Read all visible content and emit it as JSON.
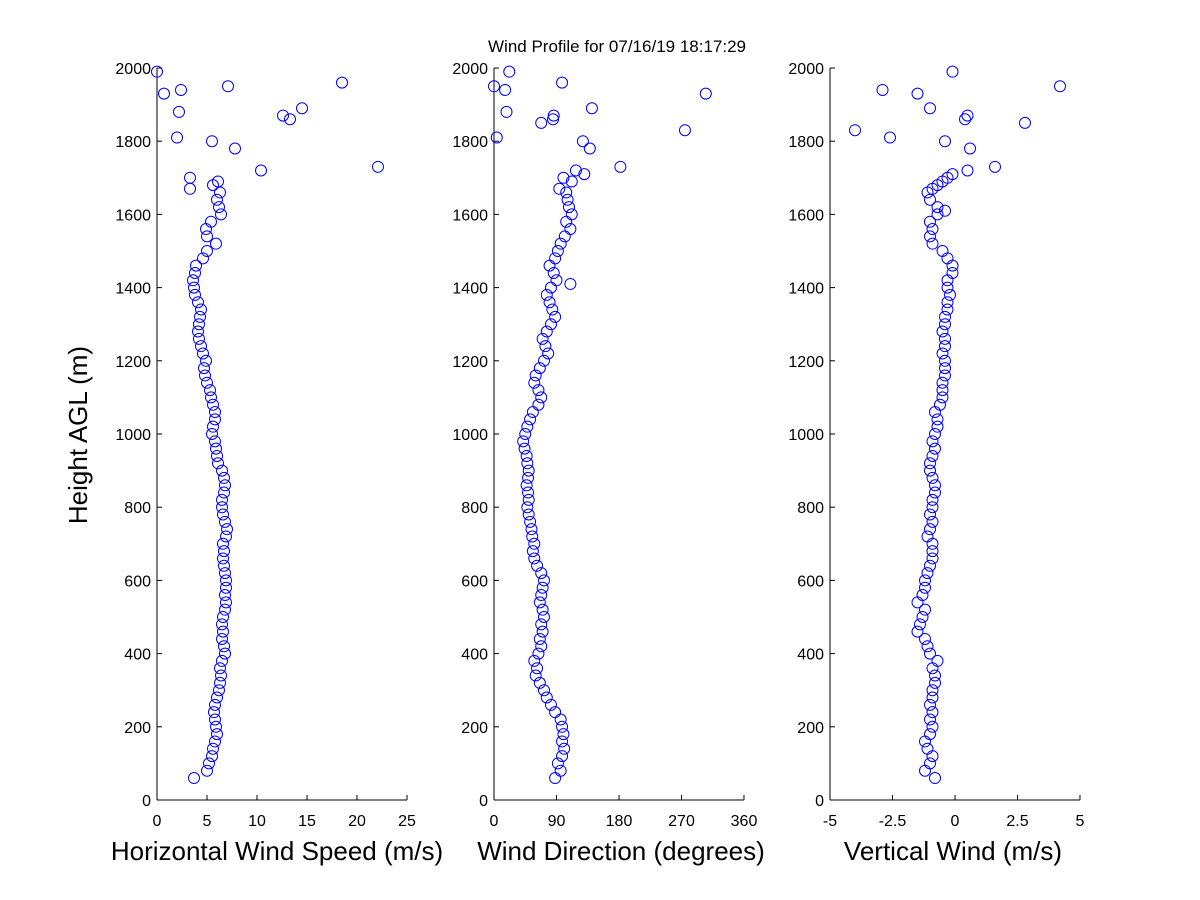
{
  "chart_data": {
    "figure_title": "Wind Profile for  07/16/19 18:17:29",
    "ylabel": "Height AGL (m)",
    "ylim": [
      0,
      2000
    ],
    "yticks": [
      "0",
      "200",
      "400",
      "600",
      "800",
      "1000",
      "1200",
      "1400",
      "1600",
      "1800",
      "2000"
    ],
    "panels": [
      {
        "type": "scatter",
        "xlabel": "Horizontal Wind Speed (m/s)",
        "xlim": [
          0,
          25
        ],
        "xticks": [
          0,
          5,
          10,
          15,
          20,
          25
        ],
        "xtick_labels": [
          "0",
          "5",
          "10",
          "15",
          "20",
          "25"
        ],
        "profile": [
          [
            60,
            3.7
          ],
          [
            80,
            5.0
          ],
          [
            100,
            5.2
          ],
          [
            120,
            5.5
          ],
          [
            140,
            5.6
          ],
          [
            160,
            5.8
          ],
          [
            180,
            6.0
          ],
          [
            200,
            5.9
          ],
          [
            220,
            5.8
          ],
          [
            240,
            5.7
          ],
          [
            260,
            5.8
          ],
          [
            280,
            6.0
          ],
          [
            300,
            6.2
          ],
          [
            320,
            6.3
          ],
          [
            340,
            6.4
          ],
          [
            360,
            6.3
          ],
          [
            380,
            6.5
          ],
          [
            400,
            6.8
          ],
          [
            420,
            6.7
          ],
          [
            440,
            6.5
          ],
          [
            460,
            6.6
          ],
          [
            480,
            6.5
          ],
          [
            500,
            6.6
          ],
          [
            520,
            6.8
          ],
          [
            540,
            6.9
          ],
          [
            560,
            6.8
          ],
          [
            580,
            6.9
          ],
          [
            600,
            6.9
          ],
          [
            620,
            6.8
          ],
          [
            640,
            6.7
          ],
          [
            660,
            6.6
          ],
          [
            680,
            6.7
          ],
          [
            700,
            6.6
          ],
          [
            720,
            6.9
          ],
          [
            740,
            7.0
          ],
          [
            760,
            6.8
          ],
          [
            780,
            6.6
          ],
          [
            800,
            6.5
          ],
          [
            820,
            6.5
          ],
          [
            840,
            6.7
          ],
          [
            860,
            6.8
          ],
          [
            880,
            6.7
          ],
          [
            900,
            6.5
          ],
          [
            920,
            6.1
          ],
          [
            940,
            6.0
          ],
          [
            960,
            5.9
          ],
          [
            980,
            5.8
          ],
          [
            1000,
            5.5
          ],
          [
            1020,
            5.6
          ],
          [
            1040,
            5.8
          ],
          [
            1060,
            5.8
          ],
          [
            1080,
            5.6
          ],
          [
            1100,
            5.4
          ],
          [
            1120,
            5.3
          ],
          [
            1140,
            5.0
          ],
          [
            1160,
            4.8
          ],
          [
            1180,
            4.7
          ],
          [
            1200,
            4.9
          ],
          [
            1220,
            4.6
          ],
          [
            1240,
            4.4
          ],
          [
            1260,
            4.2
          ],
          [
            1280,
            4.1
          ],
          [
            1300,
            4.2
          ],
          [
            1320,
            4.3
          ],
          [
            1340,
            4.4
          ],
          [
            1360,
            4.1
          ],
          [
            1380,
            3.8
          ],
          [
            1400,
            3.7
          ],
          [
            1420,
            3.6
          ],
          [
            1440,
            3.8
          ],
          [
            1460,
            3.9
          ],
          [
            1480,
            4.6
          ],
          [
            1500,
            5.0
          ],
          [
            1520,
            5.9
          ],
          [
            1540,
            5.0
          ],
          [
            1560,
            4.9
          ],
          [
            1580,
            5.4
          ],
          [
            1600,
            6.4
          ],
          [
            1620,
            6.2
          ],
          [
            1640,
            6.0
          ],
          [
            1660,
            6.3
          ],
          [
            1680,
            5.6
          ],
          [
            1690,
            6.1
          ]
        ],
        "outliers": [
          [
            1700,
            3.3
          ],
          [
            1670,
            3.3
          ],
          [
            1720,
            10.4
          ],
          [
            1730,
            22.1
          ],
          [
            1780,
            7.8
          ],
          [
            1800,
            5.5
          ],
          [
            1810,
            2.0
          ],
          [
            1860,
            13.3
          ],
          [
            1870,
            12.6
          ],
          [
            1880,
            2.2
          ],
          [
            1890,
            14.5
          ],
          [
            1930,
            0.7
          ],
          [
            1940,
            2.4
          ],
          [
            1950,
            7.1
          ],
          [
            1960,
            18.5
          ],
          [
            1990,
            0.0
          ]
        ]
      },
      {
        "type": "scatter",
        "xlabel": "Wind Direction (degrees)",
        "xlim": [
          0,
          360
        ],
        "xticks": [
          0,
          90,
          180,
          270,
          360
        ],
        "xtick_labels": [
          "0",
          "90",
          "180",
          "270",
          "360"
        ],
        "profile": [
          [
            60,
            88
          ],
          [
            80,
            96
          ],
          [
            100,
            92
          ],
          [
            120,
            98
          ],
          [
            140,
            101
          ],
          [
            160,
            98
          ],
          [
            180,
            100
          ],
          [
            200,
            98
          ],
          [
            220,
            96
          ],
          [
            240,
            88
          ],
          [
            260,
            82
          ],
          [
            280,
            76
          ],
          [
            300,
            72
          ],
          [
            320,
            66
          ],
          [
            340,
            60
          ],
          [
            360,
            62
          ],
          [
            380,
            58
          ],
          [
            400,
            64
          ],
          [
            420,
            68
          ],
          [
            440,
            66
          ],
          [
            460,
            70
          ],
          [
            480,
            68
          ],
          [
            500,
            72
          ],
          [
            520,
            70
          ],
          [
            540,
            66
          ],
          [
            560,
            68
          ],
          [
            580,
            70
          ],
          [
            600,
            72
          ],
          [
            620,
            68
          ],
          [
            640,
            62
          ],
          [
            660,
            58
          ],
          [
            680,
            56
          ],
          [
            700,
            58
          ],
          [
            720,
            55
          ],
          [
            740,
            54
          ],
          [
            760,
            52
          ],
          [
            780,
            50
          ],
          [
            800,
            48
          ],
          [
            820,
            50
          ],
          [
            840,
            49
          ],
          [
            860,
            47
          ],
          [
            880,
            49
          ],
          [
            900,
            50
          ],
          [
            920,
            48
          ],
          [
            940,
            47
          ],
          [
            960,
            44
          ],
          [
            980,
            42
          ],
          [
            1000,
            45
          ],
          [
            1020,
            48
          ],
          [
            1040,
            52
          ],
          [
            1060,
            56
          ],
          [
            1080,
            64
          ],
          [
            1100,
            68
          ],
          [
            1120,
            64
          ],
          [
            1140,
            58
          ],
          [
            1160,
            60
          ],
          [
            1180,
            66
          ],
          [
            1200,
            72
          ],
          [
            1220,
            78
          ],
          [
            1240,
            74
          ],
          [
            1260,
            70
          ],
          [
            1280,
            76
          ],
          [
            1300,
            82
          ],
          [
            1320,
            88
          ],
          [
            1340,
            84
          ],
          [
            1360,
            80
          ],
          [
            1380,
            76
          ],
          [
            1400,
            82
          ],
          [
            1420,
            90
          ],
          [
            1440,
            86
          ],
          [
            1460,
            80
          ],
          [
            1480,
            88
          ],
          [
            1500,
            92
          ],
          [
            1520,
            96
          ],
          [
            1540,
            102
          ],
          [
            1560,
            110
          ],
          [
            1580,
            104
          ],
          [
            1600,
            112
          ],
          [
            1620,
            108
          ],
          [
            1640,
            106
          ],
          [
            1660,
            104
          ],
          [
            1670,
            94
          ],
          [
            1690,
            112
          ],
          [
            1700,
            100
          ],
          [
            1710,
            130
          ]
        ],
        "outliers": [
          [
            1410,
            110
          ],
          [
            1720,
            118
          ],
          [
            1730,
            182
          ],
          [
            1780,
            138
          ],
          [
            1800,
            128
          ],
          [
            1810,
            4
          ],
          [
            1830,
            275
          ],
          [
            1850,
            68
          ],
          [
            1860,
            85
          ],
          [
            1870,
            86
          ],
          [
            1880,
            18
          ],
          [
            1890,
            141
          ],
          [
            1930,
            305
          ],
          [
            1940,
            16
          ],
          [
            1950,
            0
          ],
          [
            1960,
            98
          ],
          [
            1990,
            22
          ]
        ]
      },
      {
        "type": "scatter",
        "xlabel": "Vertical Wind (m/s)",
        "xlim": [
          -5,
          5
        ],
        "xticks": [
          -5,
          -2.5,
          0,
          2.5,
          5
        ],
        "xtick_labels": [
          "-5",
          "-2.5",
          "0",
          "2.5",
          "5"
        ],
        "profile": [
          [
            60,
            -0.8
          ],
          [
            80,
            -1.2
          ],
          [
            100,
            -1.0
          ],
          [
            120,
            -0.9
          ],
          [
            140,
            -1.1
          ],
          [
            160,
            -1.2
          ],
          [
            180,
            -1.0
          ],
          [
            200,
            -0.9
          ],
          [
            220,
            -1.0
          ],
          [
            240,
            -0.9
          ],
          [
            260,
            -1.0
          ],
          [
            280,
            -0.9
          ],
          [
            300,
            -0.9
          ],
          [
            320,
            -0.8
          ],
          [
            340,
            -0.8
          ],
          [
            360,
            -0.9
          ],
          [
            380,
            -0.7
          ],
          [
            400,
            -1.0
          ],
          [
            420,
            -1.1
          ],
          [
            440,
            -1.2
          ],
          [
            460,
            -1.5
          ],
          [
            480,
            -1.4
          ],
          [
            500,
            -1.3
          ],
          [
            520,
            -1.2
          ],
          [
            540,
            -1.5
          ],
          [
            560,
            -1.3
          ],
          [
            580,
            -1.2
          ],
          [
            600,
            -1.2
          ],
          [
            620,
            -1.1
          ],
          [
            640,
            -1.0
          ],
          [
            660,
            -0.9
          ],
          [
            680,
            -0.9
          ],
          [
            700,
            -0.9
          ],
          [
            720,
            -1.1
          ],
          [
            740,
            -1.0
          ],
          [
            760,
            -0.9
          ],
          [
            780,
            -1.0
          ],
          [
            800,
            -0.9
          ],
          [
            820,
            -0.9
          ],
          [
            840,
            -0.8
          ],
          [
            860,
            -0.8
          ],
          [
            880,
            -0.9
          ],
          [
            900,
            -1.0
          ],
          [
            920,
            -1.0
          ],
          [
            940,
            -0.9
          ],
          [
            960,
            -0.8
          ],
          [
            980,
            -0.9
          ],
          [
            1000,
            -0.8
          ],
          [
            1020,
            -0.7
          ],
          [
            1040,
            -0.7
          ],
          [
            1060,
            -0.8
          ],
          [
            1080,
            -0.6
          ],
          [
            1100,
            -0.5
          ],
          [
            1120,
            -0.5
          ],
          [
            1140,
            -0.5
          ],
          [
            1160,
            -0.4
          ],
          [
            1180,
            -0.4
          ],
          [
            1200,
            -0.4
          ],
          [
            1220,
            -0.5
          ],
          [
            1240,
            -0.4
          ],
          [
            1260,
            -0.4
          ],
          [
            1280,
            -0.5
          ],
          [
            1300,
            -0.4
          ],
          [
            1320,
            -0.4
          ],
          [
            1340,
            -0.3
          ],
          [
            1360,
            -0.3
          ],
          [
            1380,
            -0.2
          ],
          [
            1400,
            -0.3
          ],
          [
            1420,
            -0.3
          ],
          [
            1440,
            -0.1
          ],
          [
            1460,
            -0.1
          ],
          [
            1480,
            -0.3
          ],
          [
            1500,
            -0.5
          ],
          [
            1520,
            -0.9
          ],
          [
            1540,
            -1.0
          ],
          [
            1560,
            -0.9
          ],
          [
            1580,
            -1.0
          ],
          [
            1600,
            -0.7
          ],
          [
            1610,
            -0.4
          ],
          [
            1620,
            -0.7
          ],
          [
            1640,
            -1.0
          ],
          [
            1660,
            -1.1
          ],
          [
            1670,
            -0.9
          ],
          [
            1680,
            -0.7
          ],
          [
            1690,
            -0.5
          ],
          [
            1700,
            -0.3
          ],
          [
            1710,
            -0.1
          ]
        ],
        "outliers": [
          [
            1720,
            0.5
          ],
          [
            1730,
            1.6
          ],
          [
            1780,
            0.6
          ],
          [
            1800,
            -0.4
          ],
          [
            1810,
            -2.6
          ],
          [
            1830,
            -4.0
          ],
          [
            1850,
            2.8
          ],
          [
            1860,
            0.4
          ],
          [
            1870,
            0.5
          ],
          [
            1890,
            -1.0
          ],
          [
            1930,
            -1.5
          ],
          [
            1940,
            -2.9
          ],
          [
            1950,
            4.2
          ],
          [
            1990,
            -0.1
          ]
        ]
      }
    ]
  }
}
